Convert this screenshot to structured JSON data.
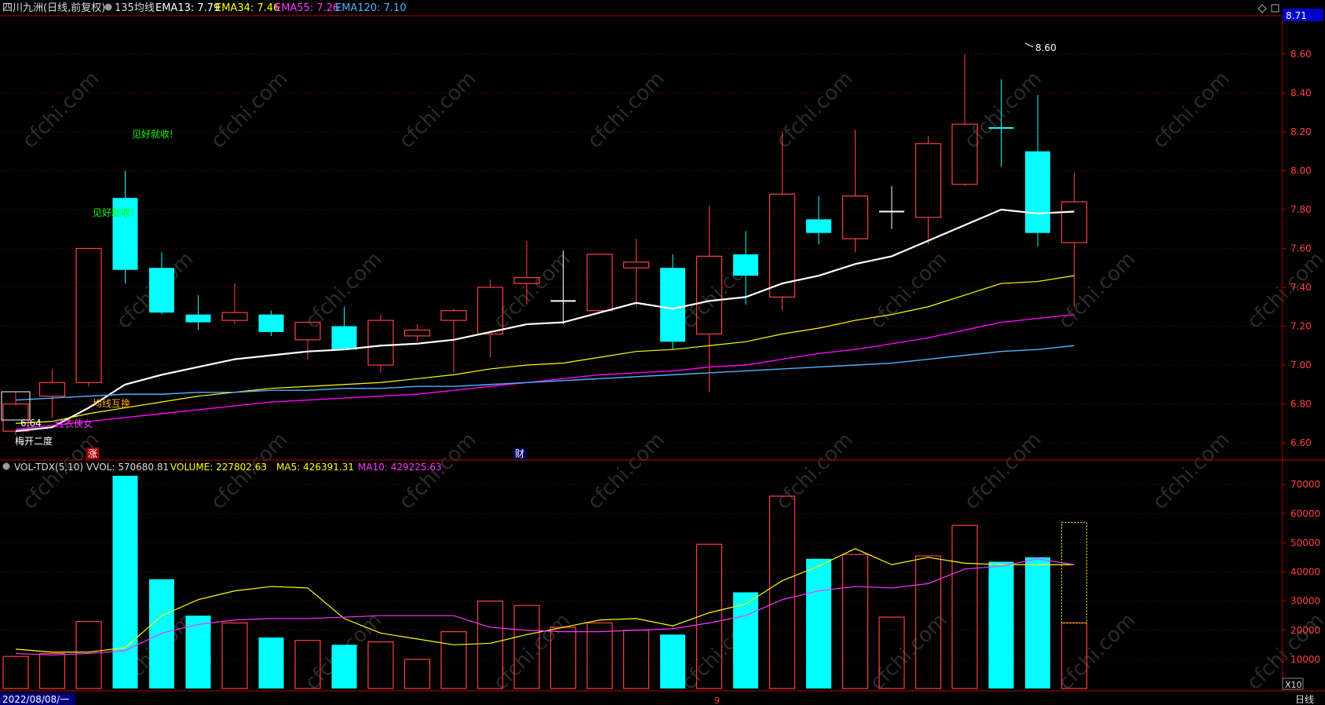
{
  "header": {
    "title": "四川九洲(日线,前复权)",
    "indicator_name": "135均线",
    "ema13": "EMA13: 7.79",
    "ema34": "EMA34: 7.46",
    "ema55": "EMA55: 7.26",
    "ema120": "EMA120: 7.10"
  },
  "vol_header": {
    "name": "VOL-TDX(5,10)",
    "vvol": "VVOL: 570680.81",
    "volume": "VOLUME: 227802.63",
    "ma5": "MA5: 426391.31",
    "ma10": "MA10: 429225.63"
  },
  "annotations": {
    "take_profit_1": "见好就收!",
    "take_profit_2": "见好就收!",
    "ma_cross": "均线互换",
    "red_hero": "红衣侠女",
    "low_label": "6.64",
    "high_label": "8.60",
    "mei_kai": "梅开二度",
    "zhang_tag": "涨",
    "cai_tag": "财",
    "current_price": "8.71",
    "vol_scale": "X10"
  },
  "footer": {
    "date_box": "2022/08/08/一",
    "month_mark": "9",
    "period": "日线"
  },
  "colors": {
    "up": "#ff4040",
    "down": "#00ffff",
    "ema13": "#ffffff",
    "ema34": "#ffff00",
    "ema55": "#ff00ff",
    "ema120": "#4fb3ff",
    "grid": "#7a0000",
    "axis": "#b00000",
    "watermark": "cfchi.com"
  },
  "chart_data": [
    {
      "type": "candlestick",
      "title": "四川九洲(日线,前复权)",
      "ylim": [
        6.5,
        8.7
      ],
      "y_ticks": [
        "8.60",
        "8.40",
        "8.20",
        "8.00",
        "7.80",
        "7.60",
        "7.40",
        "7.20",
        "7.00",
        "6.80",
        "6.60"
      ],
      "candles": [
        {
          "o": 6.66,
          "c": 6.8,
          "h": 6.86,
          "l": 6.64
        },
        {
          "o": 6.84,
          "c": 6.91,
          "h": 6.98,
          "l": 6.73
        },
        {
          "o": 6.91,
          "c": 7.6,
          "h": 7.6,
          "l": 6.89
        },
        {
          "o": 7.86,
          "c": 7.49,
          "h": 8.0,
          "l": 7.42
        },
        {
          "o": 7.5,
          "c": 7.27,
          "h": 7.58,
          "l": 7.26
        },
        {
          "o": 7.26,
          "c": 7.22,
          "h": 7.36,
          "l": 7.18
        },
        {
          "o": 7.23,
          "c": 7.27,
          "h": 7.42,
          "l": 7.21
        },
        {
          "o": 7.26,
          "c": 7.17,
          "h": 7.28,
          "l": 7.15
        },
        {
          "o": 7.13,
          "c": 7.22,
          "h": 7.22,
          "l": 7.03
        },
        {
          "o": 7.2,
          "c": 7.08,
          "h": 7.3,
          "l": 7.08
        },
        {
          "o": 7.0,
          "c": 7.23,
          "h": 7.26,
          "l": 6.96
        },
        {
          "o": 7.15,
          "c": 7.18,
          "h": 7.21,
          "l": 7.12
        },
        {
          "o": 7.23,
          "c": 7.28,
          "h": 7.29,
          "l": 6.96
        },
        {
          "o": 7.16,
          "c": 7.4,
          "h": 7.44,
          "l": 7.04
        },
        {
          "o": 7.42,
          "c": 7.45,
          "h": 7.64,
          "l": 7.31
        },
        {
          "o": 7.33,
          "c": 7.33,
          "h": 7.59,
          "l": 7.21
        },
        {
          "o": 7.28,
          "c": 7.57,
          "h": 7.57,
          "l": 7.28
        },
        {
          "o": 7.5,
          "c": 7.53,
          "h": 7.65,
          "l": 7.3
        },
        {
          "o": 7.5,
          "c": 7.12,
          "h": 7.57,
          "l": 7.08
        },
        {
          "o": 7.16,
          "c": 7.56,
          "h": 7.82,
          "l": 6.86
        },
        {
          "o": 7.57,
          "c": 7.46,
          "h": 7.69,
          "l": 7.31
        },
        {
          "o": 7.35,
          "c": 7.88,
          "h": 8.2,
          "l": 7.28
        },
        {
          "o": 7.75,
          "c": 7.68,
          "h": 7.87,
          "l": 7.62
        },
        {
          "o": 7.65,
          "c": 7.87,
          "h": 8.21,
          "l": 7.58
        },
        {
          "o": 7.79,
          "c": 7.79,
          "h": 7.92,
          "l": 7.7
        },
        {
          "o": 7.76,
          "c": 8.14,
          "h": 8.18,
          "l": 7.62
        },
        {
          "o": 7.93,
          "c": 8.24,
          "h": 8.6,
          "l": 7.92
        },
        {
          "o": 8.22,
          "c": 8.22,
          "h": 8.47,
          "l": 8.02
        },
        {
          "o": 8.1,
          "c": 7.68,
          "h": 8.39,
          "l": 7.61
        },
        {
          "o": 7.63,
          "c": 7.84,
          "h": 7.99,
          "l": 7.3
        }
      ],
      "series": [
        {
          "name": "EMA13",
          "values": [
            6.66,
            6.68,
            6.78,
            6.9,
            6.95,
            6.99,
            7.03,
            7.05,
            7.07,
            7.08,
            7.1,
            7.11,
            7.13,
            7.17,
            7.21,
            7.22,
            7.27,
            7.32,
            7.29,
            7.33,
            7.35,
            7.42,
            7.46,
            7.52,
            7.56,
            7.64,
            7.72,
            7.8,
            7.78,
            7.79
          ]
        },
        {
          "name": "EMA34",
          "values": [
            6.7,
            6.71,
            6.75,
            6.78,
            6.81,
            6.84,
            6.86,
            6.88,
            6.89,
            6.9,
            6.91,
            6.93,
            6.95,
            6.98,
            7.0,
            7.01,
            7.04,
            7.07,
            7.08,
            7.1,
            7.12,
            7.16,
            7.19,
            7.23,
            7.26,
            7.3,
            7.36,
            7.42,
            7.43,
            7.46
          ]
        },
        {
          "name": "EMA55",
          "values": [
            6.67,
            6.69,
            6.71,
            6.73,
            6.75,
            6.77,
            6.79,
            6.81,
            6.82,
            6.83,
            6.84,
            6.85,
            6.87,
            6.89,
            6.91,
            6.93,
            6.95,
            6.96,
            6.97,
            6.99,
            7.0,
            7.03,
            7.06,
            7.08,
            7.11,
            7.14,
            7.18,
            7.22,
            7.24,
            7.26
          ]
        },
        {
          "name": "EMA120",
          "values": [
            6.82,
            6.83,
            6.84,
            6.85,
            6.85,
            6.86,
            6.86,
            6.87,
            6.87,
            6.88,
            6.88,
            6.89,
            6.89,
            6.9,
            6.91,
            6.92,
            6.93,
            6.94,
            6.95,
            6.96,
            6.97,
            6.98,
            6.99,
            7.0,
            7.01,
            7.03,
            7.05,
            7.07,
            7.08,
            7.1
          ]
        }
      ]
    },
    {
      "type": "bar",
      "title": "VOL-TDX(5,10)",
      "ylim": [
        0,
        75000
      ],
      "y_ticks": [
        "70000",
        "60000",
        "50000",
        "40000",
        "30000",
        "20000",
        "10000"
      ],
      "volumes": [
        11000,
        12000,
        23000,
        73000,
        37500,
        25000,
        22500,
        17500,
        16500,
        15000,
        16000,
        10000,
        19500,
        30000,
        28500,
        21000,
        22500,
        20000,
        18500,
        49500,
        33000,
        66000,
        44500,
        46000,
        24500,
        45500,
        56000,
        43500,
        45000,
        22500
      ],
      "vvol": 57000,
      "series": [
        {
          "name": "MA5",
          "values": [
            13500,
            12500,
            12500,
            14000,
            25000,
            30500,
            33500,
            35000,
            34500,
            24000,
            19000,
            17000,
            15000,
            15500,
            18500,
            21000,
            23500,
            24000,
            21500,
            26000,
            29000,
            37000,
            42000,
            48000,
            42500,
            45000,
            43000,
            42500,
            42500,
            42500
          ]
        },
        {
          "name": "MA10",
          "values": [
            12000,
            11500,
            12000,
            13000,
            19000,
            22000,
            23500,
            24000,
            24000,
            24500,
            25000,
            25000,
            25000,
            21000,
            20000,
            19500,
            19500,
            20000,
            20500,
            22500,
            25000,
            30500,
            33500,
            35000,
            34500,
            36000,
            41000,
            42000,
            44500,
            42500
          ]
        }
      ]
    }
  ]
}
